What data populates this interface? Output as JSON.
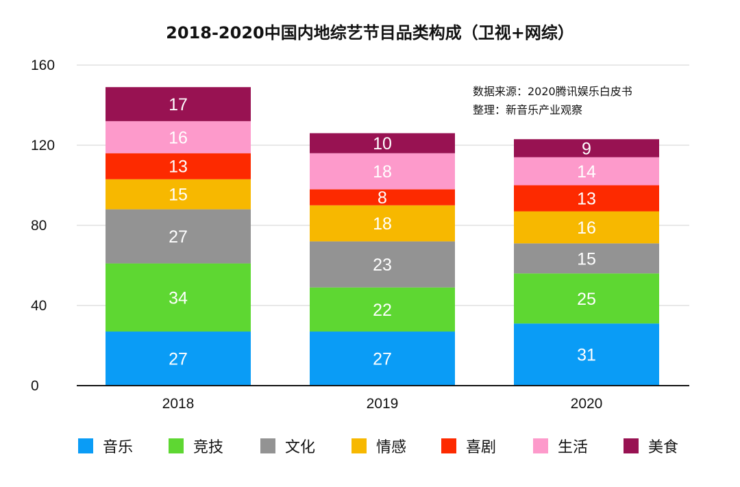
{
  "chart_data": {
    "type": "bar",
    "stacked": true,
    "title": "2018-2020中国内地综艺节目品类构成（卫视+网综）",
    "categories": [
      "2018",
      "2019",
      "2020"
    ],
    "ylim": [
      0,
      160
    ],
    "yticks": [
      0,
      40,
      80,
      120,
      160
    ],
    "grid": true,
    "legend_position": "bottom",
    "annotations": [
      "数据来源：2020腾讯娱乐白皮书",
      "整理：新音乐产业观察"
    ],
    "series": [
      {
        "name": "音乐",
        "color": "#0a9cf6",
        "values": [
          27,
          27,
          31
        ]
      },
      {
        "name": "竞技",
        "color": "#5ed732",
        "values": [
          34,
          22,
          25
        ]
      },
      {
        "name": "文化",
        "color": "#939393",
        "values": [
          27,
          23,
          15
        ]
      },
      {
        "name": "情感",
        "color": "#f7b800",
        "values": [
          15,
          18,
          16
        ]
      },
      {
        "name": "喜剧",
        "color": "#fd2a00",
        "values": [
          13,
          8,
          13
        ]
      },
      {
        "name": "生活",
        "color": "#fd9acb",
        "values": [
          16,
          18,
          14
        ]
      },
      {
        "name": "美食",
        "color": "#981252",
        "values": [
          17,
          10,
          9
        ]
      }
    ]
  }
}
